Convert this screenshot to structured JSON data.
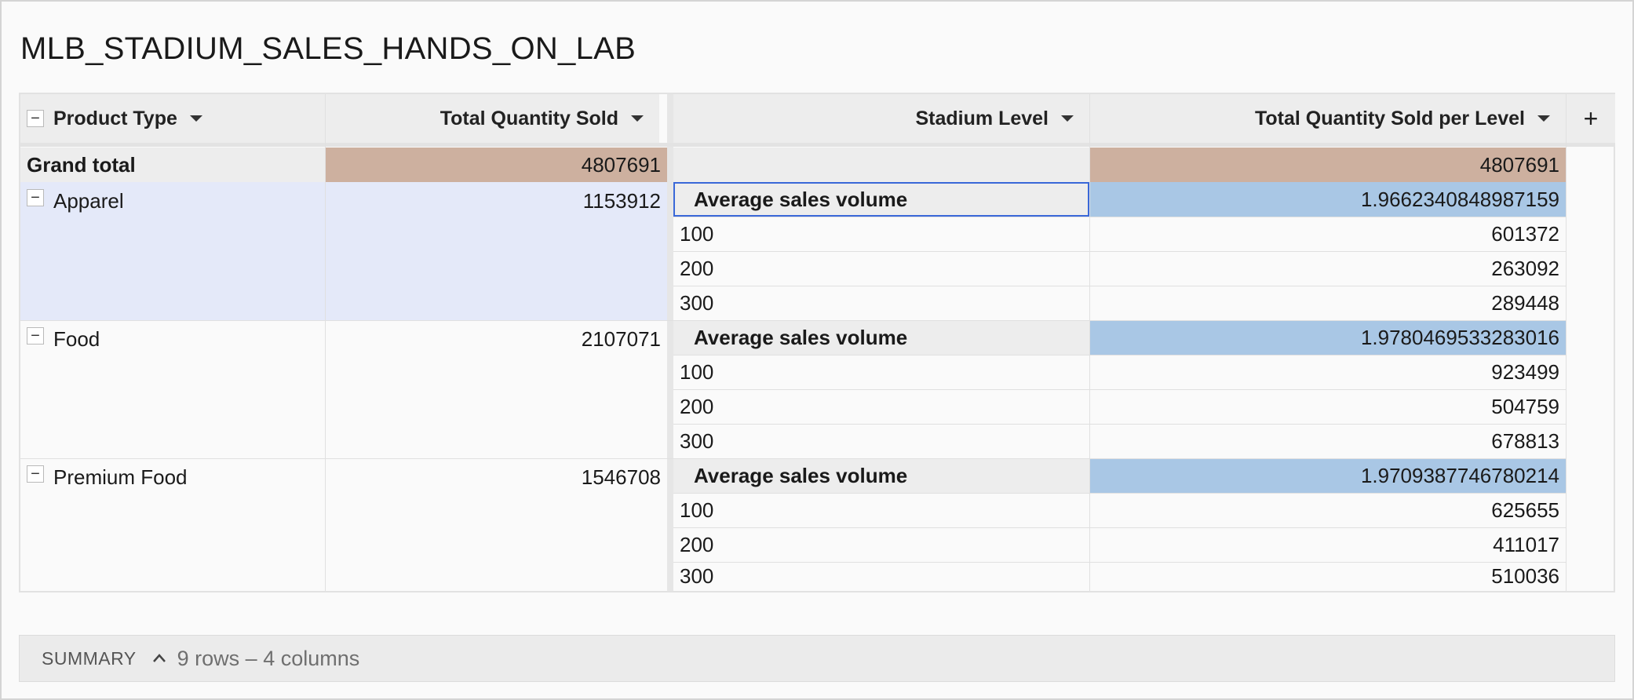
{
  "title": "MLB_STADIUM_SALES_HANDS_ON_LAB",
  "columns": {
    "product_type": "Product Type",
    "total_qty": "Total Quantity Sold",
    "stadium_level": "Stadium Level",
    "qty_per_level": "Total Quantity Sold per Level",
    "add": "+"
  },
  "grand_total": {
    "label": "Grand total",
    "total_qty": "4807691",
    "qty_per_level": "4807691"
  },
  "groups": [
    {
      "name": "Apparel",
      "total_qty": "1153912",
      "avg_label": "Average sales volume",
      "avg_value": "1.9662340848987159",
      "levels": [
        {
          "level": "100",
          "qty": "601372"
        },
        {
          "level": "200",
          "qty": "263092"
        },
        {
          "level": "300",
          "qty": "289448"
        }
      ]
    },
    {
      "name": "Food",
      "total_qty": "2107071",
      "avg_label": "Average sales volume",
      "avg_value": "1.9780469533283016",
      "levels": [
        {
          "level": "100",
          "qty": "923499"
        },
        {
          "level": "200",
          "qty": "504759"
        },
        {
          "level": "300",
          "qty": "678813"
        }
      ]
    },
    {
      "name": "Premium Food",
      "total_qty": "1546708",
      "avg_label": "Average sales volume",
      "avg_value": "1.9709387746780214",
      "levels": [
        {
          "level": "100",
          "qty": "625655"
        },
        {
          "level": "200",
          "qty": "411017"
        },
        {
          "level": "300",
          "qty": "510036"
        }
      ]
    }
  ],
  "summary": {
    "label": "SUMMARY",
    "count": "9 rows – 4 columns"
  },
  "colors": {
    "grand_total_highlight": "#cdb09f",
    "avg_value_highlight": "#a9c7e5",
    "selected_group": "#e4e9f9",
    "selected_cell_border": "#3a68d8"
  }
}
